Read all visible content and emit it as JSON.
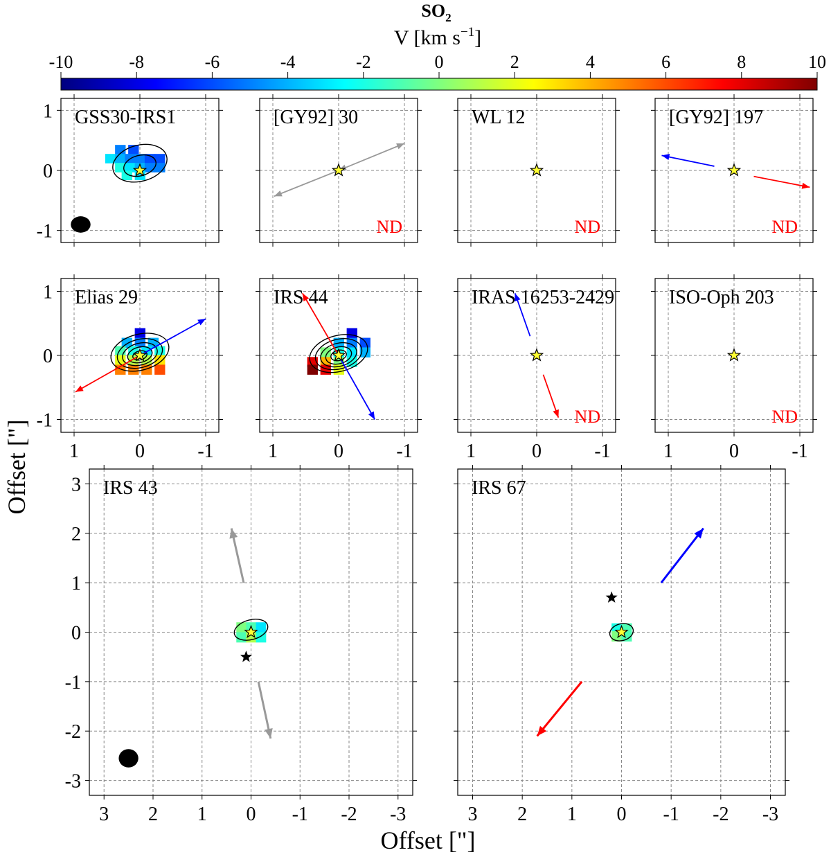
{
  "colorbar": {
    "title": "SO",
    "title_sub": "2",
    "label_prefix": "V [km s",
    "label_sup": "−1",
    "label_suffix": "]",
    "vmin": -10,
    "vmax": 10,
    "ticks": [
      "-10",
      "-8",
      "-6",
      "-4",
      "-2",
      "0",
      "2",
      "4",
      "6",
      "8",
      "10"
    ],
    "colormap": [
      "#00007f",
      "#0000ff",
      "#007fff",
      "#00ffff",
      "#7fff7f",
      "#ffff00",
      "#ff7f00",
      "#ff0000",
      "#7f0000"
    ]
  },
  "axes": {
    "ylabel": "Offset [\"]",
    "xlabel": "Offset [\"]",
    "small_ticks": [
      "1",
      "0",
      "-1"
    ],
    "big_ticks": [
      "3",
      "2",
      "1",
      "0",
      "-1",
      "-2",
      "-3"
    ]
  },
  "nd_label": "ND",
  "colors": {
    "red": "#ff0000",
    "blue": "#0000ff",
    "gray": "#999999",
    "star": "#ffff33",
    "grid": "#888888"
  },
  "chart_data": [
    {
      "type": "heatmap",
      "name": "GSS30-IRS1",
      "xlim": [
        1.2,
        -1.2
      ],
      "ylim": [
        -1.2,
        1.2
      ],
      "detected": true,
      "beam": {
        "x": 0.9,
        "y": -0.9,
        "major": 0.3,
        "minor": 0.22
      },
      "outflows": [],
      "pixels": [
        [
          0.3,
          0.35,
          -5
        ],
        [
          0.1,
          0.35,
          -6
        ],
        [
          0.45,
          0.2,
          -3
        ],
        [
          0.3,
          0.2,
          -4
        ],
        [
          0.15,
          0.2,
          -5
        ],
        [
          0,
          0.2,
          -5
        ],
        [
          -0.15,
          0.2,
          -6
        ],
        [
          -0.3,
          0.2,
          -6
        ],
        [
          0.3,
          0.05,
          -2
        ],
        [
          0.15,
          0.05,
          -3
        ],
        [
          0,
          0.05,
          -4
        ],
        [
          -0.15,
          0.05,
          -5
        ],
        [
          -0.3,
          0.05,
          -5
        ],
        [
          0.2,
          -0.08,
          -2
        ],
        [
          0,
          -0.08,
          -3
        ]
      ],
      "contours": [
        [
          0.42,
          0.3,
          0.12
        ],
        [
          0.25,
          0.17,
          0.08
        ]
      ]
    },
    {
      "type": "heatmap",
      "name": "[GY92] 30",
      "xlim": [
        1.2,
        -1.2
      ],
      "ylim": [
        -1.2,
        1.2
      ],
      "detected": false,
      "outflows": [
        {
          "color": "gray",
          "from": [
            0,
            0
          ],
          "to": [
            -1,
            0.45
          ],
          "double": true
        },
        {
          "color": "gray",
          "from": [
            0,
            0
          ],
          "to": [
            0.98,
            -0.43
          ],
          "double": false
        }
      ]
    },
    {
      "type": "heatmap",
      "name": "WL 12",
      "xlim": [
        1.2,
        -1.2
      ],
      "ylim": [
        -1.2,
        1.2
      ],
      "detected": false,
      "outflows": []
    },
    {
      "type": "heatmap",
      "name": "[GY92] 197",
      "xlim": [
        1.2,
        -1.2
      ],
      "ylim": [
        -1.2,
        1.2
      ],
      "detected": false,
      "outflows": [
        {
          "color": "blue",
          "from": [
            0.3,
            0.07
          ],
          "to": [
            1.1,
            0.25
          ]
        },
        {
          "color": "red",
          "from": [
            -0.3,
            -0.1
          ],
          "to": [
            -1.15,
            -0.28
          ]
        }
      ]
    },
    {
      "type": "heatmap",
      "name": "Elias 29",
      "xlim": [
        1.2,
        -1.2
      ],
      "ylim": [
        -1.2,
        1.2
      ],
      "detected": true,
      "outflows": [
        {
          "color": "blue",
          "from": [
            0,
            0
          ],
          "to": [
            -1,
            0.57
          ]
        },
        {
          "color": "red",
          "from": [
            0,
            0
          ],
          "to": [
            0.98,
            -0.57
          ]
        }
      ],
      "pixels": [
        [
          0,
          0.35,
          -8
        ],
        [
          0.2,
          0.2,
          -4
        ],
        [
          0,
          0.2,
          -5
        ],
        [
          -0.2,
          0.2,
          -4
        ],
        [
          0.3,
          0.07,
          -1
        ],
        [
          0.1,
          0.07,
          -2
        ],
        [
          -0.1,
          0.07,
          -3
        ],
        [
          -0.3,
          0.07,
          -2
        ],
        [
          0.3,
          -0.07,
          2
        ],
        [
          0.1,
          -0.07,
          1
        ],
        [
          -0.1,
          -0.07,
          1
        ],
        [
          -0.3,
          -0.07,
          3
        ],
        [
          0.3,
          -0.22,
          5
        ],
        [
          0.1,
          -0.22,
          5
        ],
        [
          -0.1,
          -0.22,
          5
        ],
        [
          -0.3,
          -0.22,
          6
        ]
      ],
      "contours": [
        [
          0.45,
          0.28,
          0.05
        ],
        [
          0.35,
          0.22,
          0.03
        ],
        [
          0.27,
          0.17,
          0.02
        ],
        [
          0.19,
          0.12,
          0.01
        ],
        [
          0.11,
          0.07,
          0.0
        ]
      ]
    },
    {
      "type": "heatmap",
      "name": "IRS 44",
      "xlim": [
        1.2,
        -1.2
      ],
      "ylim": [
        -1.2,
        1.2
      ],
      "detected": true,
      "outflows": [
        {
          "color": "blue",
          "from": [
            0,
            0
          ],
          "to": [
            -0.55,
            -1
          ]
        },
        {
          "color": "red",
          "from": [
            0,
            0
          ],
          "to": [
            0.55,
            0.97
          ]
        }
      ],
      "pixels": [
        [
          -0.2,
          0.35,
          -8
        ],
        [
          0,
          0.2,
          -4
        ],
        [
          -0.2,
          0.2,
          -5
        ],
        [
          -0.4,
          0.2,
          -6
        ],
        [
          0.2,
          0.05,
          0
        ],
        [
          0,
          0.05,
          -2
        ],
        [
          -0.2,
          0.05,
          -3
        ],
        [
          -0.4,
          0.05,
          -4
        ],
        [
          0.4,
          -0.1,
          8
        ],
        [
          0.2,
          -0.1,
          4
        ],
        [
          0,
          -0.1,
          0
        ],
        [
          -0.2,
          -0.1,
          -2
        ],
        [
          0.4,
          -0.22,
          10
        ],
        [
          0.2,
          -0.22,
          8
        ],
        [
          0,
          -0.22,
          2
        ]
      ],
      "contours": [
        [
          0.45,
          0.28,
          0.03
        ],
        [
          0.36,
          0.23,
          0.02
        ],
        [
          0.28,
          0.18,
          0.01
        ],
        [
          0.2,
          0.13,
          0.0
        ],
        [
          0.12,
          0.08,
          0.0
        ]
      ]
    },
    {
      "type": "heatmap",
      "name": "IRAS 16253-2429",
      "xlim": [
        1.2,
        -1.2
      ],
      "ylim": [
        -1.2,
        1.2
      ],
      "detected": false,
      "outflows": [
        {
          "color": "blue",
          "from": [
            0.1,
            0.3
          ],
          "to": [
            0.33,
            0.97
          ]
        },
        {
          "color": "red",
          "from": [
            -0.1,
            -0.3
          ],
          "to": [
            -0.33,
            -0.97
          ]
        }
      ]
    },
    {
      "type": "heatmap",
      "name": "ISO-Oph 203",
      "xlim": [
        1.2,
        -1.2
      ],
      "ylim": [
        -1.2,
        1.2
      ],
      "detected": false,
      "outflows": []
    },
    {
      "type": "heatmap",
      "name": "IRS 43",
      "xlim": [
        3.3,
        -3.3
      ],
      "ylim": [
        -3.3,
        3.3
      ],
      "detected": true,
      "beam": {
        "x": 2.5,
        "y": -2.55,
        "major": 0.4,
        "minor": 0.3
      },
      "companion": [
        0.1,
        -0.5
      ],
      "outflows": [
        {
          "color": "gray",
          "from": [
            0.15,
            1
          ],
          "to": [
            0.4,
            2.1
          ]
        },
        {
          "color": "gray",
          "from": [
            -0.15,
            -1
          ],
          "to": [
            -0.4,
            -2.15
          ]
        }
      ],
      "pixels": [
        [
          0.2,
          0.1,
          0
        ],
        [
          0,
          0.1,
          -1
        ],
        [
          -0.2,
          0.1,
          -3
        ],
        [
          0.2,
          -0.1,
          -1
        ],
        [
          0,
          -0.1,
          1
        ],
        [
          -0.2,
          -0.1,
          -2
        ]
      ],
      "contours": [
        [
          0.35,
          0.2,
          0.05
        ]
      ]
    },
    {
      "type": "heatmap",
      "name": "IRS 67",
      "xlim": [
        3.3,
        -3.3
      ],
      "ylim": [
        -3.3,
        3.3
      ],
      "detected": true,
      "companion": [
        0.2,
        0.7
      ],
      "outflows": [
        {
          "color": "blue",
          "from": [
            -0.8,
            1
          ],
          "to": [
            -1.65,
            2.1
          ]
        },
        {
          "color": "red",
          "from": [
            0.8,
            -1
          ],
          "to": [
            1.7,
            -2.1
          ]
        }
      ],
      "pixels": [
        [
          0.1,
          0.08,
          -2
        ],
        [
          -0.1,
          0.08,
          -1
        ],
        [
          0.1,
          -0.08,
          0
        ],
        [
          -0.1,
          -0.08,
          -1
        ]
      ],
      "contours": [
        [
          0.24,
          0.17,
          0.0
        ]
      ]
    }
  ]
}
